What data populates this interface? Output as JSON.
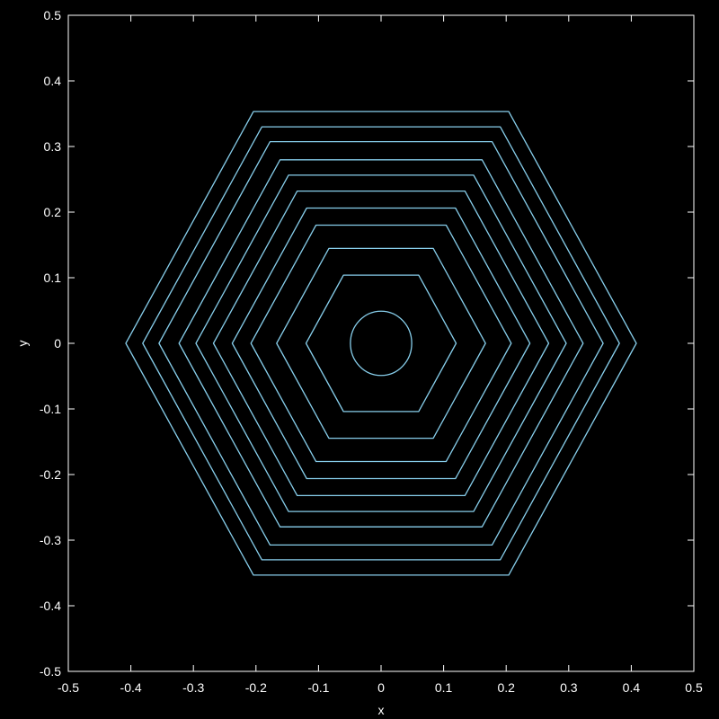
{
  "chart_data": {
    "type": "line",
    "title": "",
    "xlabel": "x",
    "ylabel": "y",
    "xlim": [
      -0.5,
      0.5
    ],
    "ylim": [
      -0.5,
      0.5
    ],
    "xticks": [
      "-0.5",
      "-0.4",
      "-0.3",
      "-0.2",
      "-0.1",
      "0",
      "0.1",
      "0.2",
      "0.3",
      "0.4",
      "0.5"
    ],
    "yticks": [
      "-0.5",
      "-0.4",
      "-0.3",
      "-0.2",
      "-0.1",
      "0",
      "0.1",
      "0.2",
      "0.3",
      "0.4",
      "0.5"
    ],
    "grid": false,
    "legend": "none",
    "line_color": "#87ceeb",
    "background": "#000000",
    "foreground": "#ffffff",
    "inner_circle": {
      "center": [
        0,
        0
      ],
      "radius_x": 0.049,
      "radius_y": 0.049
    },
    "hexagon_vertex_x": [
      0.12,
      0.167,
      0.208,
      0.238,
      0.268,
      0.296,
      0.323,
      0.355,
      0.381,
      0.408
    ]
  }
}
